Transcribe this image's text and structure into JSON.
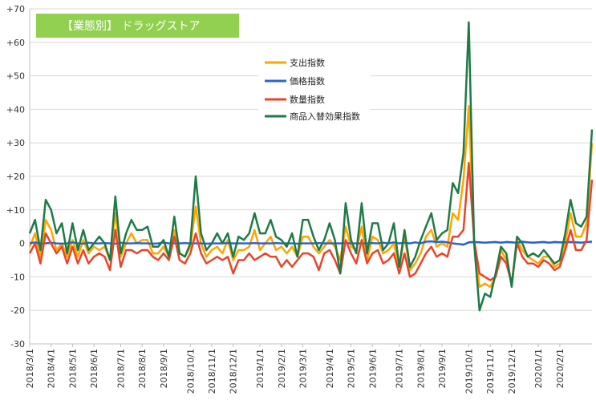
{
  "chart_data": {
    "type": "line",
    "title": "【業態別】 ドラッグストア",
    "title_bg": "#92d050",
    "ylim": [
      -30,
      70
    ],
    "y_ticks": [
      "-30",
      "-20",
      "-10",
      "0",
      "+10",
      "+20",
      "+30",
      "+40",
      "+50",
      "+60",
      "+70"
    ],
    "x_labels": [
      "2018/3/1",
      "2018/4/1",
      "2018/5/1",
      "2018/6/1",
      "2018/7/1",
      "2018/8/1",
      "2018/9/1",
      "2018/10/1",
      "2018/11/1",
      "2018/12/1",
      "2019/1/1",
      "2019/2/1",
      "2019/3/1",
      "2019/4/1",
      "2019/5/1",
      "2019/6/1",
      "2019/7/1",
      "2019/8/1",
      "2019/9/1",
      "2019/10/1",
      "2019/11/1",
      "2019/12/1",
      "2020/1/1",
      "2020/2/1"
    ],
    "x_label_week_index": [
      0,
      4,
      8,
      12,
      17,
      21,
      25,
      30,
      34,
      38,
      43,
      47,
      51,
      56,
      60,
      64,
      69,
      73,
      77,
      82,
      86,
      90,
      95,
      99
    ],
    "grid": "horizontal",
    "legend_position": "upper-center",
    "series": [
      {
        "name": "支出指数",
        "color": "#ffa500",
        "values": [
          -1,
          3,
          -4,
          7,
          4,
          -2,
          0,
          -4,
          1,
          -4,
          1,
          -3,
          -1,
          -2,
          -1,
          -5,
          9,
          -4,
          0,
          3,
          0,
          1,
          1,
          -3,
          -3,
          -1,
          -4,
          4,
          -3,
          -4,
          -1,
          11,
          0,
          -4,
          -2,
          -1,
          -3,
          1,
          -5,
          -2,
          -2,
          -1,
          4,
          -2,
          0,
          2,
          -2,
          -1,
          -3,
          -1,
          -4,
          2,
          2,
          -1,
          -3,
          -1,
          1,
          -1,
          -5,
          5,
          -1,
          -2,
          5,
          -5,
          2,
          1,
          -3,
          -2,
          0,
          -7,
          2,
          -8,
          -6,
          -3,
          2,
          4,
          -1,
          0,
          -1,
          9,
          7,
          19,
          41,
          0,
          -13,
          -12,
          -13,
          -10,
          -2,
          -5,
          -12,
          1,
          -2,
          -4,
          -5,
          -6,
          -4,
          -4,
          -7,
          -6,
          0,
          9,
          2,
          2,
          6,
          30
        ]
      },
      {
        "name": "価格指数",
        "color": "#2d63c8",
        "values": [
          0,
          0.3,
          -0.2,
          0,
          0.2,
          0,
          -0.1,
          0,
          0.3,
          0,
          -0.1,
          0.2,
          0,
          0,
          0.1,
          0,
          -0.1,
          0.2,
          0,
          0,
          0.1,
          0,
          0,
          -0.1,
          0,
          0.2,
          0,
          0,
          0,
          0.1,
          0,
          0,
          0,
          -0.1,
          0,
          0,
          0,
          0.1,
          0,
          0,
          0,
          0,
          0.1,
          0,
          0,
          0,
          0.1,
          0,
          0,
          0,
          -0.1,
          0,
          0,
          0,
          0.1,
          0,
          0,
          0,
          0,
          0.1,
          0,
          0,
          0,
          0,
          0.1,
          0,
          0.2,
          0,
          0.3,
          0,
          0.2,
          0,
          0.3,
          0,
          0.5,
          0.6,
          0.4,
          0.5,
          0.3,
          0,
          -0.2,
          -0.4,
          0.3,
          0.4,
          0.3,
          0.2,
          0.3,
          0.4,
          0.2,
          0.4,
          0.3,
          0.2,
          0.5,
          0.3,
          0.2,
          0.3,
          0.4,
          0.2,
          0.4,
          0.3,
          0.3,
          0.4,
          0.3,
          0.2,
          0.4,
          0.5
        ]
      },
      {
        "name": "数量指数",
        "color": "#e8452c",
        "values": [
          -3,
          0,
          -6,
          3,
          0,
          -3,
          -1,
          -6,
          -1,
          -6,
          -2,
          -6,
          -4,
          -3,
          -4,
          -8,
          4,
          -7,
          -2,
          -2,
          -3,
          -2,
          -2,
          -4,
          -5,
          -3,
          -5,
          2,
          -5,
          -6,
          -3,
          3,
          -3,
          -6,
          -5,
          -4,
          -5,
          -4,
          -9,
          -5,
          -5,
          -3,
          -5,
          -4,
          -3,
          -4,
          -4,
          -7,
          -5,
          -7,
          -5,
          -3,
          -3,
          -4,
          -8,
          -3,
          -2,
          -5,
          -9,
          1,
          -3,
          -6,
          1,
          -6,
          -3,
          -2,
          -6,
          -5,
          -3,
          -9,
          -3,
          -10,
          -9,
          -6,
          -3,
          -1,
          -4,
          -3,
          -4,
          2,
          2,
          4,
          24,
          1,
          -9,
          -10,
          -11,
          -10,
          -4,
          -6,
          -12,
          0,
          -4,
          -6,
          -6,
          -7,
          -5,
          -6,
          -8,
          -7,
          -2,
          4,
          -2,
          -2,
          1,
          19
        ]
      },
      {
        "name": "商品入替効果指数",
        "color": "#1e7b46",
        "values": [
          3,
          7,
          -2,
          13,
          10,
          3,
          6,
          -3,
          6,
          -2,
          4,
          -2,
          0,
          2,
          0,
          -5,
          14,
          -3,
          3,
          7,
          4,
          4,
          5,
          -1,
          -1,
          1,
          -4,
          8,
          -3,
          -4,
          0,
          20,
          3,
          -2,
          0,
          3,
          0,
          3,
          -4,
          2,
          1,
          3,
          9,
          3,
          3,
          7,
          2,
          1,
          -1,
          3,
          -4,
          7,
          7,
          2,
          -2,
          1,
          6,
          1,
          -9,
          12,
          1,
          -3,
          12,
          -3,
          6,
          6,
          -2,
          0,
          6,
          -7,
          4,
          -7,
          -4,
          1,
          5,
          9,
          1,
          3,
          4,
          18,
          15,
          27,
          66,
          0,
          -20,
          -15,
          -16,
          -9,
          -1,
          -3,
          -13,
          2,
          0,
          -4,
          -3,
          -4,
          -2,
          -4,
          -6,
          -5,
          3,
          13,
          6,
          5,
          8,
          34
        ]
      }
    ]
  }
}
